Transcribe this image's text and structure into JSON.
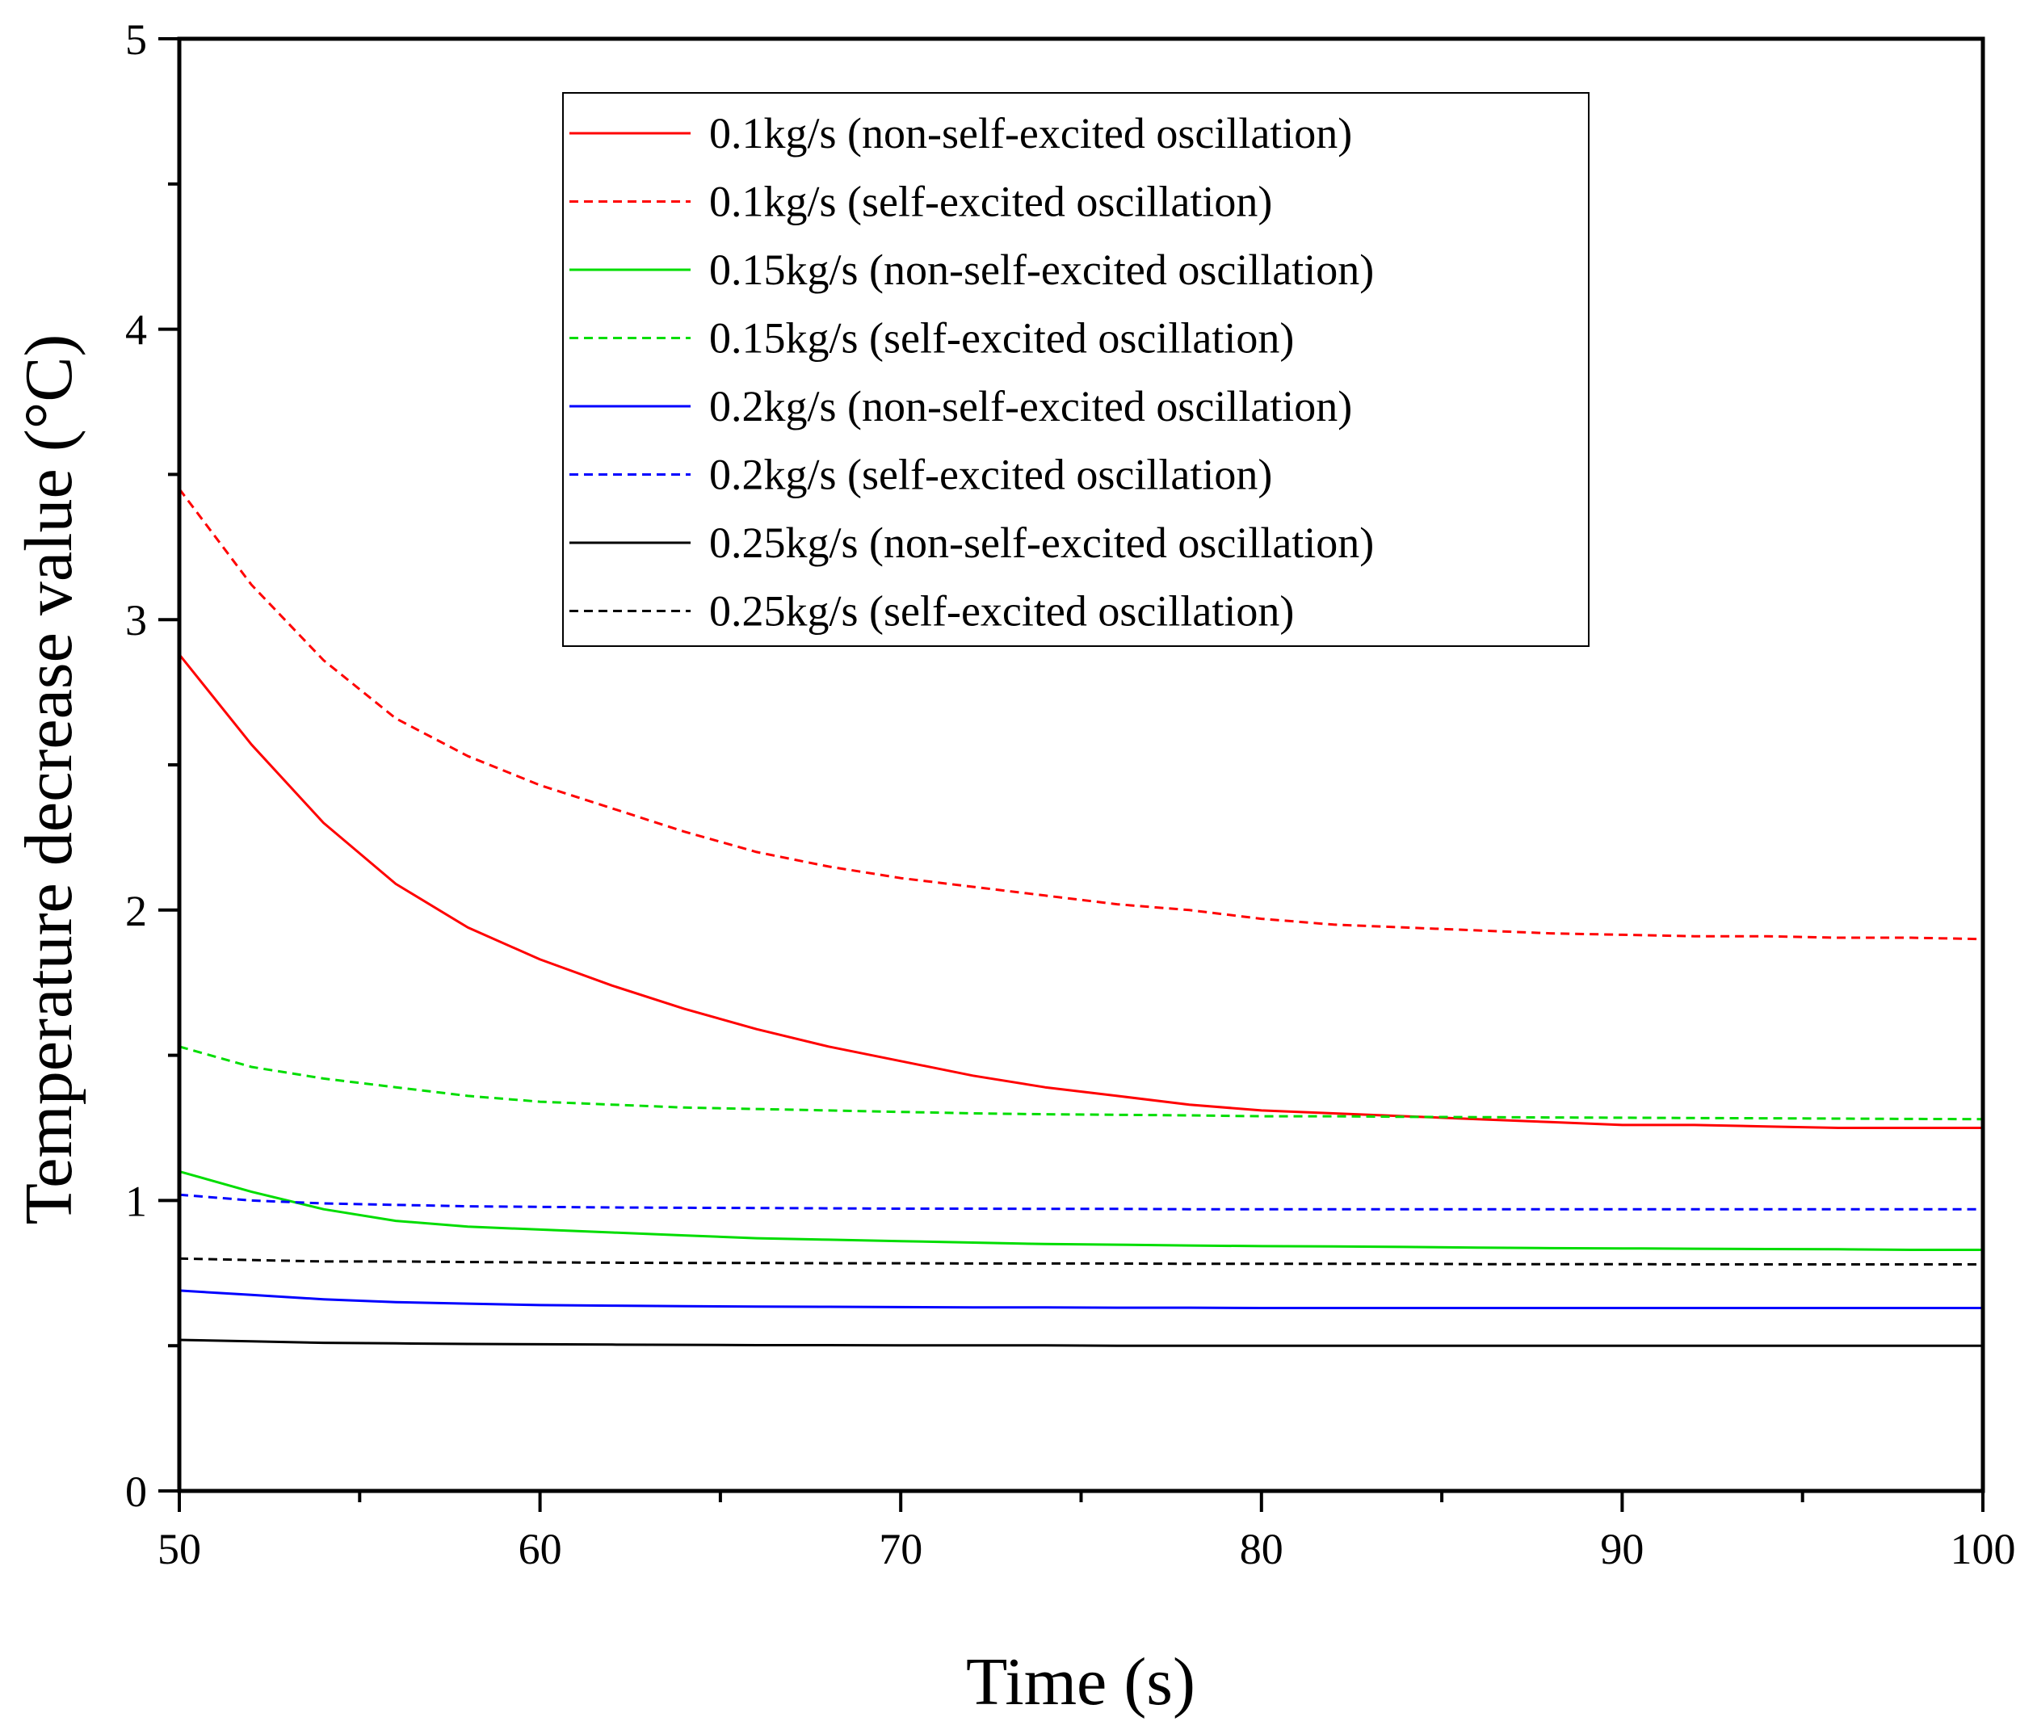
{
  "chart_data": {
    "type": "line",
    "title": "",
    "xlabel": "Time (s)",
    "ylabel": "Temperature decrease value (°C)",
    "xlim": [
      50,
      100
    ],
    "ylim": [
      0,
      5
    ],
    "xticks": [
      "50",
      "60",
      "70",
      "80",
      "90",
      "100"
    ],
    "yticks": [
      "0",
      "1",
      "2",
      "3",
      "4",
      "5"
    ],
    "x": [
      50,
      52,
      54,
      56,
      58,
      60,
      62,
      64,
      66,
      68,
      70,
      72,
      74,
      76,
      78,
      80,
      82,
      84,
      86,
      88,
      90,
      92,
      94,
      96,
      98,
      100
    ],
    "legend_position": "top-center",
    "series": [
      {
        "name": "0.1kg/s (non-self-excited oscillation)",
        "color": "#ff0000",
        "dash": "solid",
        "values": [
          2.88,
          2.57,
          2.3,
          2.09,
          1.94,
          1.83,
          1.74,
          1.66,
          1.59,
          1.53,
          1.48,
          1.43,
          1.39,
          1.36,
          1.33,
          1.31,
          1.3,
          1.29,
          1.28,
          1.27,
          1.26,
          1.26,
          1.255,
          1.25,
          1.25,
          1.25
        ]
      },
      {
        "name": "0.1kg/s (self-excited oscillation)",
        "color": "#ff0000",
        "dash": "dashed",
        "values": [
          3.45,
          3.12,
          2.86,
          2.66,
          2.53,
          2.43,
          2.35,
          2.27,
          2.2,
          2.15,
          2.11,
          2.08,
          2.05,
          2.02,
          2.0,
          1.97,
          1.95,
          1.94,
          1.93,
          1.92,
          1.915,
          1.91,
          1.91,
          1.905,
          1.905,
          1.9
        ]
      },
      {
        "name": "0.15kg/s (non-self-excited oscillation)",
        "color": "#00dd00",
        "dash": "solid",
        "values": [
          1.1,
          1.03,
          0.97,
          0.93,
          0.91,
          0.9,
          0.89,
          0.88,
          0.87,
          0.865,
          0.86,
          0.855,
          0.85,
          0.848,
          0.845,
          0.843,
          0.842,
          0.84,
          0.838,
          0.836,
          0.835,
          0.834,
          0.833,
          0.832,
          0.83,
          0.83
        ]
      },
      {
        "name": "0.15kg/s (self-excited oscillation)",
        "color": "#00dd00",
        "dash": "dashed",
        "values": [
          1.53,
          1.46,
          1.42,
          1.39,
          1.36,
          1.34,
          1.33,
          1.32,
          1.315,
          1.31,
          1.305,
          1.3,
          1.297,
          1.295,
          1.293,
          1.29,
          1.29,
          1.288,
          1.287,
          1.286,
          1.285,
          1.284,
          1.283,
          1.282,
          1.281,
          1.28
        ]
      },
      {
        "name": "0.2kg/s (non-self-excited oscillation)",
        "color": "#0000ff",
        "dash": "solid",
        "values": [
          0.69,
          0.675,
          0.66,
          0.65,
          0.645,
          0.64,
          0.638,
          0.636,
          0.635,
          0.634,
          0.633,
          0.632,
          0.632,
          0.631,
          0.631,
          0.63,
          0.63,
          0.63,
          0.63,
          0.63,
          0.63,
          0.63,
          0.63,
          0.63,
          0.63,
          0.63
        ]
      },
      {
        "name": "0.2kg/s (self-excited oscillation)",
        "color": "#0000ff",
        "dash": "dashed",
        "values": [
          1.02,
          1.0,
          0.99,
          0.985,
          0.98,
          0.978,
          0.976,
          0.975,
          0.974,
          0.973,
          0.972,
          0.972,
          0.971,
          0.971,
          0.97,
          0.97,
          0.97,
          0.97,
          0.97,
          0.97,
          0.97,
          0.97,
          0.97,
          0.97,
          0.97,
          0.97
        ]
      },
      {
        "name": "0.25kg/s (non-self-excited oscillation)",
        "color": "#000000",
        "dash": "solid",
        "values": [
          0.52,
          0.515,
          0.51,
          0.508,
          0.506,
          0.505,
          0.504,
          0.503,
          0.502,
          0.502,
          0.501,
          0.501,
          0.501,
          0.5,
          0.5,
          0.5,
          0.5,
          0.5,
          0.5,
          0.5,
          0.5,
          0.5,
          0.5,
          0.5,
          0.5,
          0.5
        ]
      },
      {
        "name": "0.25kg/s (self-excited oscillation)",
        "color": "#000000",
        "dash": "dashed",
        "values": [
          0.8,
          0.795,
          0.79,
          0.79,
          0.788,
          0.787,
          0.786,
          0.785,
          0.785,
          0.784,
          0.784,
          0.783,
          0.783,
          0.783,
          0.782,
          0.782,
          0.782,
          0.782,
          0.781,
          0.781,
          0.781,
          0.78,
          0.78,
          0.78,
          0.78,
          0.78
        ]
      }
    ]
  }
}
